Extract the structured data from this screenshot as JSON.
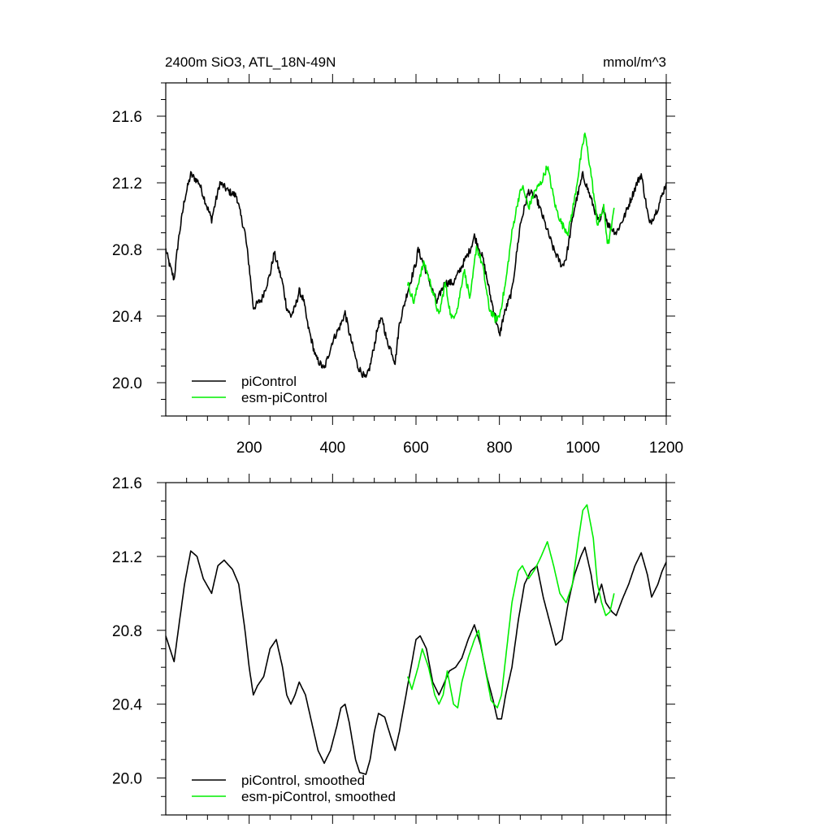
{
  "figure": {
    "title_left": "2400m SiO3, ATL_18N-49N",
    "title_right": "mmol/m^3"
  },
  "chart_data": [
    {
      "type": "line",
      "panel": "top",
      "xlim": [
        0,
        1200
      ],
      "ylim": [
        19.8,
        21.8
      ],
      "xticks": [
        200,
        400,
        600,
        800,
        1000,
        1200
      ],
      "xtick_labels": [
        "200",
        "400",
        "600",
        "800",
        "1000",
        "1200"
      ],
      "yticks": [
        20.0,
        20.4,
        20.8,
        21.2,
        21.6
      ],
      "ytick_labels": [
        "20.0",
        "20.4",
        "20.8",
        "21.2",
        "21.6"
      ],
      "grid": false,
      "legend_position": "bottom-left",
      "series": [
        {
          "name": "piControl",
          "color": "#000000",
          "noisy": true,
          "points": [
            [
              0,
              20.8
            ],
            [
              10,
              20.7
            ],
            [
              20,
              20.62
            ],
            [
              30,
              20.85
            ],
            [
              45,
              21.1
            ],
            [
              60,
              21.25
            ],
            [
              80,
              21.2
            ],
            [
              100,
              21.05
            ],
            [
              110,
              20.98
            ],
            [
              130,
              21.2
            ],
            [
              150,
              21.15
            ],
            [
              170,
              21.12
            ],
            [
              180,
              21.0
            ],
            [
              190,
              20.9
            ],
            [
              200,
              20.7
            ],
            [
              210,
              20.45
            ],
            [
              230,
              20.5
            ],
            [
              250,
              20.65
            ],
            [
              260,
              20.78
            ],
            [
              280,
              20.6
            ],
            [
              290,
              20.45
            ],
            [
              300,
              20.4
            ],
            [
              310,
              20.45
            ],
            [
              320,
              20.55
            ],
            [
              330,
              20.5
            ],
            [
              340,
              20.35
            ],
            [
              360,
              20.15
            ],
            [
              380,
              20.08
            ],
            [
              400,
              20.25
            ],
            [
              420,
              20.35
            ],
            [
              430,
              20.42
            ],
            [
              440,
              20.3
            ],
            [
              460,
              20.1
            ],
            [
              480,
              20.02
            ],
            [
              490,
              20.1
            ],
            [
              510,
              20.35
            ],
            [
              520,
              20.38
            ],
            [
              530,
              20.25
            ],
            [
              540,
              20.2
            ],
            [
              550,
              20.12
            ],
            [
              560,
              20.35
            ],
            [
              580,
              20.55
            ],
            [
              600,
              20.72
            ],
            [
              605,
              20.8
            ],
            [
              620,
              20.7
            ],
            [
              640,
              20.55
            ],
            [
              650,
              20.48
            ],
            [
              660,
              20.55
            ],
            [
              670,
              20.6
            ],
            [
              690,
              20.6
            ],
            [
              710,
              20.7
            ],
            [
              730,
              20.8
            ],
            [
              740,
              20.88
            ],
            [
              760,
              20.75
            ],
            [
              780,
              20.5
            ],
            [
              790,
              20.4
            ],
            [
              800,
              20.28
            ],
            [
              810,
              20.4
            ],
            [
              830,
              20.55
            ],
            [
              850,
              20.95
            ],
            [
              870,
              21.15
            ],
            [
              890,
              21.1
            ],
            [
              910,
              20.95
            ],
            [
              930,
              20.8
            ],
            [
              950,
              20.7
            ],
            [
              960,
              20.75
            ],
            [
              980,
              21.05
            ],
            [
              1000,
              21.25
            ],
            [
              1020,
              21.1
            ],
            [
              1040,
              20.95
            ],
            [
              1050,
              21.05
            ],
            [
              1060,
              20.95
            ],
            [
              1080,
              20.9
            ],
            [
              1100,
              21.0
            ],
            [
              1130,
              21.2
            ],
            [
              1140,
              21.25
            ],
            [
              1160,
              20.95
            ],
            [
              1180,
              21.05
            ],
            [
              1200,
              21.2
            ]
          ]
        },
        {
          "name": "esm-piControl",
          "color": "#00ee00",
          "noisy": true,
          "points": [
            [
              580,
              20.6
            ],
            [
              595,
              20.48
            ],
            [
              610,
              20.65
            ],
            [
              620,
              20.72
            ],
            [
              640,
              20.55
            ],
            [
              655,
              20.4
            ],
            [
              670,
              20.6
            ],
            [
              685,
              20.38
            ],
            [
              700,
              20.45
            ],
            [
              715,
              20.68
            ],
            [
              730,
              20.5
            ],
            [
              745,
              20.82
            ],
            [
              760,
              20.7
            ],
            [
              775,
              20.45
            ],
            [
              790,
              20.38
            ],
            [
              800,
              20.4
            ],
            [
              815,
              20.6
            ],
            [
              830,
              20.9
            ],
            [
              845,
              21.1
            ],
            [
              855,
              21.18
            ],
            [
              870,
              21.05
            ],
            [
              885,
              21.15
            ],
            [
              900,
              21.2
            ],
            [
              915,
              21.3
            ],
            [
              935,
              21.05
            ],
            [
              950,
              20.95
            ],
            [
              965,
              20.9
            ],
            [
              980,
              21.1
            ],
            [
              995,
              21.35
            ],
            [
              1005,
              21.5
            ],
            [
              1020,
              21.25
            ],
            [
              1035,
              20.95
            ],
            [
              1050,
              21.05
            ],
            [
              1060,
              20.82
            ],
            [
              1070,
              20.95
            ],
            [
              1075,
              21.05
            ]
          ]
        }
      ]
    },
    {
      "type": "line",
      "panel": "bottom",
      "xlim": [
        0,
        1200
      ],
      "ylim": [
        19.8,
        21.6
      ],
      "xticks": [
        200,
        400,
        600,
        800,
        1000,
        1200
      ],
      "yticks": [
        20.0,
        20.4,
        20.8,
        21.2,
        21.6
      ],
      "ytick_labels": [
        "20.0",
        "20.4",
        "20.8",
        "21.2",
        "21.6"
      ],
      "grid": false,
      "legend_position": "bottom-left",
      "series": [
        {
          "name": "piControl, smoothed",
          "color": "#000000",
          "noisy": false,
          "points": [
            [
              0,
              20.77
            ],
            [
              10,
              20.7
            ],
            [
              20,
              20.63
            ],
            [
              30,
              20.8
            ],
            [
              45,
              21.05
            ],
            [
              60,
              21.23
            ],
            [
              75,
              21.2
            ],
            [
              90,
              21.08
            ],
            [
              110,
              21.0
            ],
            [
              125,
              21.15
            ],
            [
              140,
              21.18
            ],
            [
              160,
              21.13
            ],
            [
              175,
              21.05
            ],
            [
              190,
              20.8
            ],
            [
              200,
              20.6
            ],
            [
              210,
              20.45
            ],
            [
              220,
              20.5
            ],
            [
              235,
              20.55
            ],
            [
              250,
              20.7
            ],
            [
              265,
              20.75
            ],
            [
              280,
              20.6
            ],
            [
              290,
              20.45
            ],
            [
              300,
              20.4
            ],
            [
              310,
              20.45
            ],
            [
              320,
              20.52
            ],
            [
              335,
              20.45
            ],
            [
              350,
              20.3
            ],
            [
              365,
              20.15
            ],
            [
              380,
              20.08
            ],
            [
              395,
              20.15
            ],
            [
              410,
              20.28
            ],
            [
              420,
              20.38
            ],
            [
              430,
              20.4
            ],
            [
              440,
              20.3
            ],
            [
              455,
              20.1
            ],
            [
              465,
              20.03
            ],
            [
              480,
              20.02
            ],
            [
              490,
              20.1
            ],
            [
              500,
              20.25
            ],
            [
              510,
              20.35
            ],
            [
              525,
              20.33
            ],
            [
              540,
              20.22
            ],
            [
              550,
              20.15
            ],
            [
              560,
              20.25
            ],
            [
              580,
              20.5
            ],
            [
              600,
              20.75
            ],
            [
              610,
              20.77
            ],
            [
              625,
              20.7
            ],
            [
              640,
              20.52
            ],
            [
              655,
              20.45
            ],
            [
              665,
              20.5
            ],
            [
              680,
              20.58
            ],
            [
              695,
              20.6
            ],
            [
              710,
              20.65
            ],
            [
              725,
              20.75
            ],
            [
              740,
              20.83
            ],
            [
              755,
              20.72
            ],
            [
              770,
              20.55
            ],
            [
              785,
              20.42
            ],
            [
              795,
              20.32
            ],
            [
              805,
              20.32
            ],
            [
              815,
              20.45
            ],
            [
              830,
              20.6
            ],
            [
              845,
              20.85
            ],
            [
              860,
              21.05
            ],
            [
              875,
              21.12
            ],
            [
              890,
              21.15
            ],
            [
              905,
              20.98
            ],
            [
              920,
              20.85
            ],
            [
              935,
              20.72
            ],
            [
              950,
              20.75
            ],
            [
              965,
              20.95
            ],
            [
              980,
              21.1
            ],
            [
              995,
              21.2
            ],
            [
              1005,
              21.25
            ],
            [
              1020,
              21.1
            ],
            [
              1030,
              20.95
            ],
            [
              1045,
              21.05
            ],
            [
              1055,
              20.95
            ],
            [
              1070,
              20.9
            ],
            [
              1080,
              20.88
            ],
            [
              1095,
              20.97
            ],
            [
              1110,
              21.05
            ],
            [
              1125,
              21.15
            ],
            [
              1140,
              21.22
            ],
            [
              1155,
              21.1
            ],
            [
              1165,
              20.98
            ],
            [
              1180,
              21.05
            ],
            [
              1190,
              21.12
            ],
            [
              1200,
              21.17
            ]
          ]
        },
        {
          "name": "esm-piControl, smoothed",
          "color": "#00ee00",
          "noisy": false,
          "points": [
            [
              580,
              20.55
            ],
            [
              590,
              20.48
            ],
            [
              605,
              20.6
            ],
            [
              615,
              20.7
            ],
            [
              630,
              20.6
            ],
            [
              645,
              20.45
            ],
            [
              655,
              20.4
            ],
            [
              665,
              20.45
            ],
            [
              675,
              20.58
            ],
            [
              690,
              20.4
            ],
            [
              700,
              20.38
            ],
            [
              710,
              20.52
            ],
            [
              725,
              20.65
            ],
            [
              740,
              20.75
            ],
            [
              750,
              20.8
            ],
            [
              765,
              20.6
            ],
            [
              780,
              20.42
            ],
            [
              795,
              20.38
            ],
            [
              805,
              20.45
            ],
            [
              815,
              20.65
            ],
            [
              830,
              20.95
            ],
            [
              845,
              21.12
            ],
            [
              855,
              21.15
            ],
            [
              870,
              21.08
            ],
            [
              885,
              21.13
            ],
            [
              900,
              21.2
            ],
            [
              915,
              21.28
            ],
            [
              930,
              21.15
            ],
            [
              945,
              21.0
            ],
            [
              960,
              20.95
            ],
            [
              975,
              21.05
            ],
            [
              990,
              21.3
            ],
            [
              1000,
              21.45
            ],
            [
              1010,
              21.48
            ],
            [
              1025,
              21.3
            ],
            [
              1035,
              21.05
            ],
            [
              1045,
              20.95
            ],
            [
              1055,
              20.88
            ],
            [
              1065,
              20.9
            ],
            [
              1075,
              21.0
            ]
          ]
        }
      ]
    }
  ]
}
